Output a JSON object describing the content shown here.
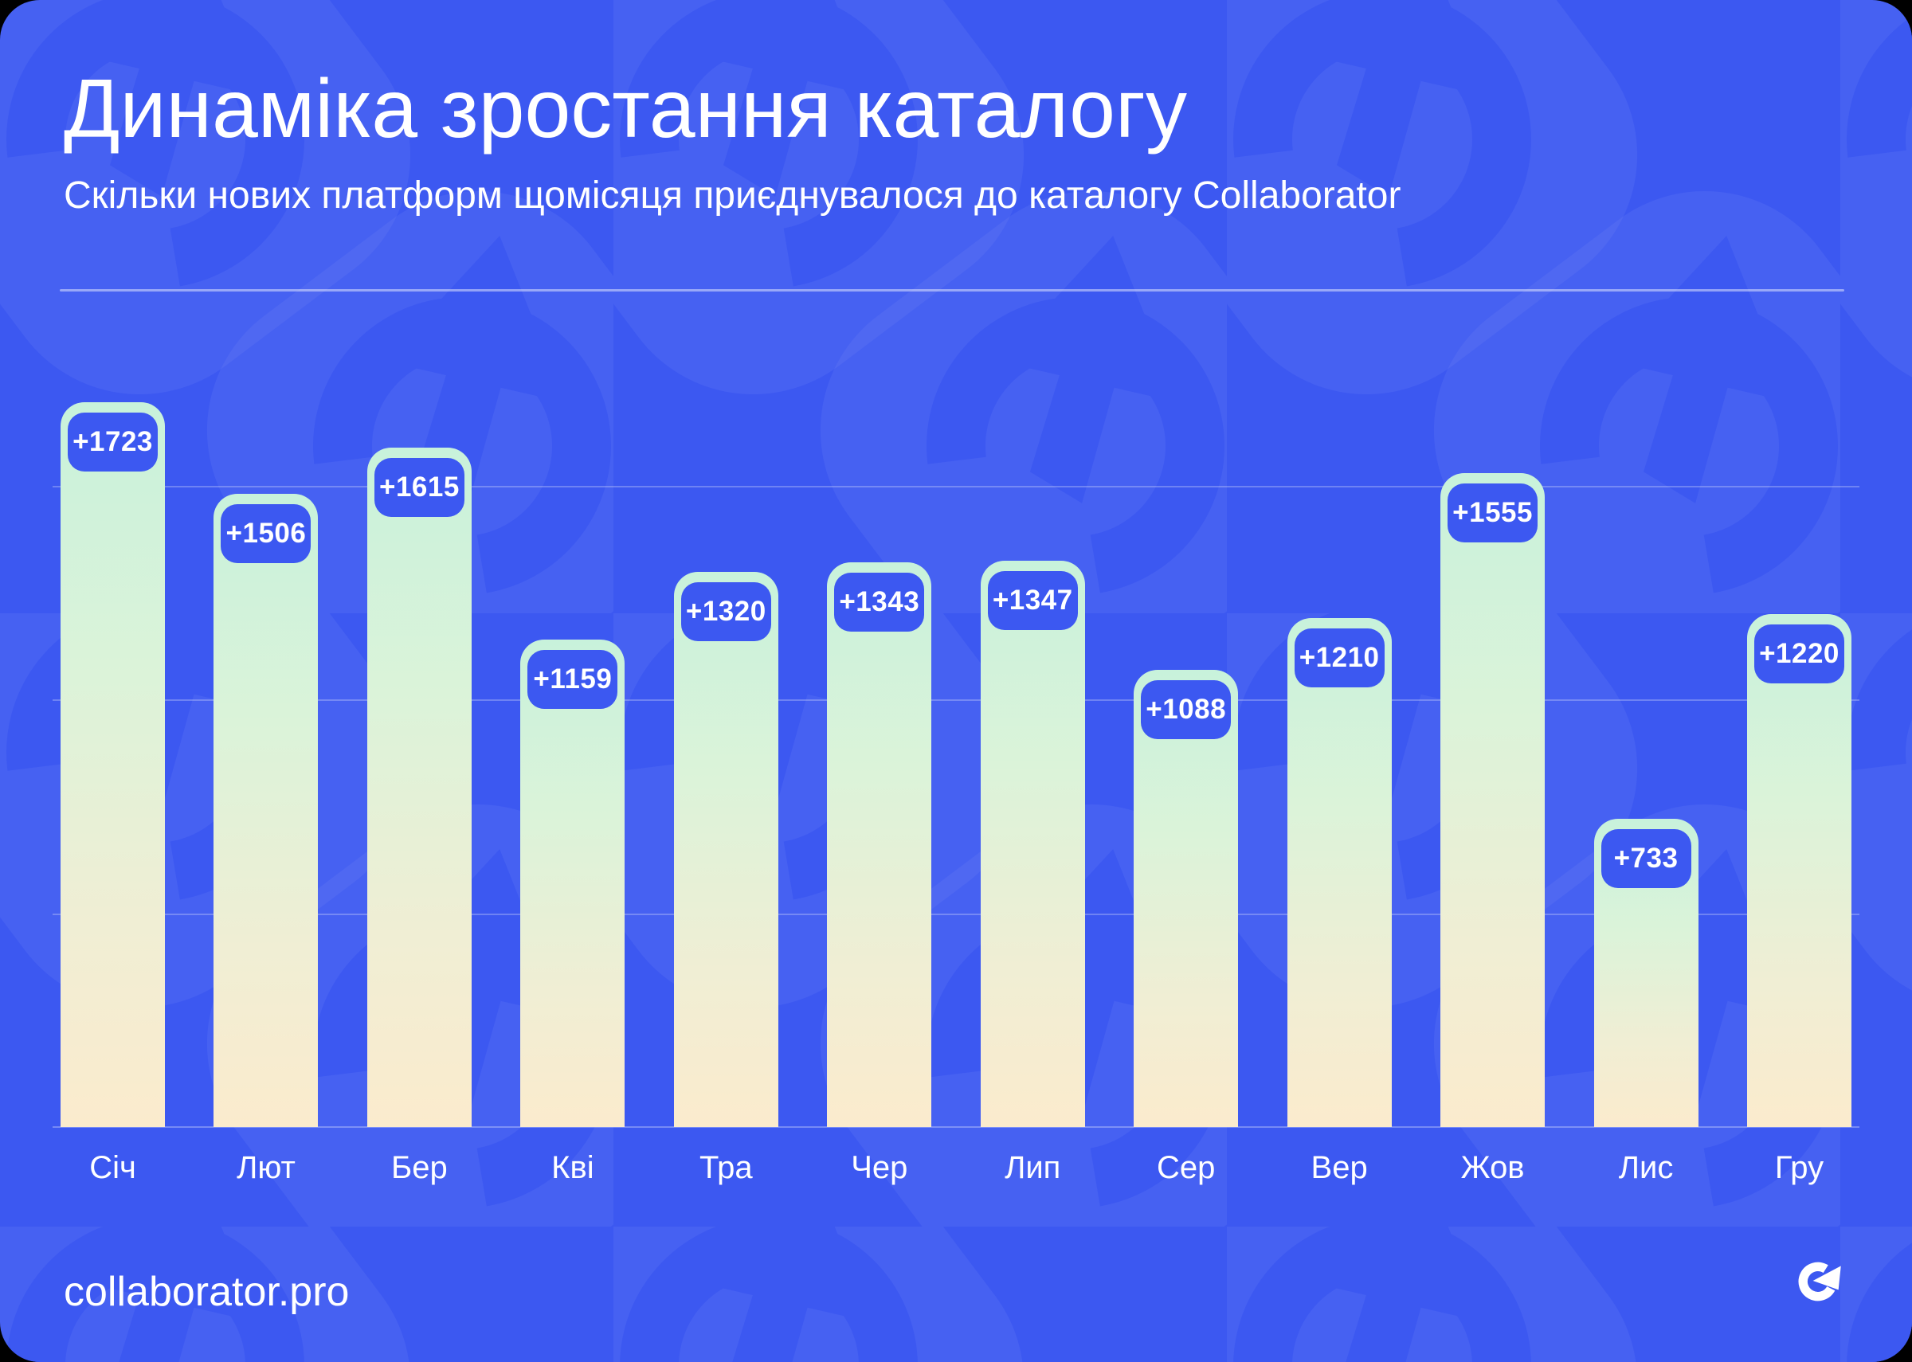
{
  "header": {
    "title": "Динаміка зростання каталогу",
    "subtitle": "Скільки нових платформ щомісяця приєднувалося до каталогу Collaborator"
  },
  "chart_data": {
    "type": "bar",
    "title": "Динаміка зростання каталогу",
    "subtitle": "Скільки нових платформ щомісяця приєднувалося до каталогу Collaborator",
    "categories": [
      "Січ",
      "Лют",
      "Бер",
      "Кві",
      "Тра",
      "Чер",
      "Лип",
      "Сер",
      "Вер",
      "Жов",
      "Лис",
      "Гру"
    ],
    "values": [
      1723,
      1506,
      1615,
      1159,
      1320,
      1343,
      1347,
      1088,
      1210,
      1555,
      733,
      1220
    ],
    "bar_labels": [
      "+1723",
      "+1506",
      "+1615",
      "+1159",
      "+1320",
      "+1343",
      "+1347",
      "+1088",
      "+1210",
      "+1555",
      "+733",
      "+1220"
    ],
    "xlabel": "",
    "ylabel": "",
    "ylim": [
      0,
      1800
    ],
    "gridlines_horizontal": 3,
    "legend": "none",
    "bar_gradient_top": "#C8F2DB",
    "bar_gradient_bottom": "#FBEBCD",
    "badge_color": "#3C58F1",
    "badge_text_color": "#FFFFFF"
  },
  "footer": {
    "site": "collaborator.pro",
    "logo": "collaborator-c-arrow-logo"
  },
  "colors": {
    "card_background": "#3C58F1",
    "text": "#FFFFFF",
    "gridline": "rgba(255,255,255,0.26)"
  }
}
